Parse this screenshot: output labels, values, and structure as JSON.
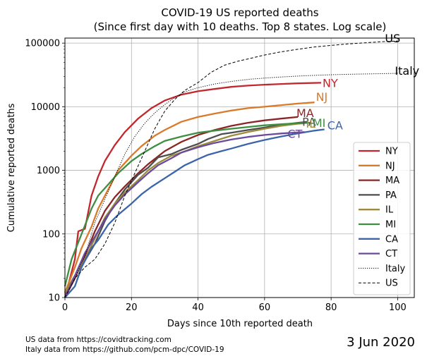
{
  "chart_data": {
    "type": "line",
    "title_lines": [
      "COVID-19 US reported deaths",
      "(Since first day with 10 deaths. Top 8 states. Log scale)"
    ],
    "xlabel": "Days since 10th reported death",
    "ylabel": "Cumulative reported deaths",
    "xlim": [
      0,
      105
    ],
    "ylim": [
      10,
      120000
    ],
    "yscale": "log",
    "xticks": [
      0,
      20,
      40,
      60,
      80,
      100
    ],
    "yticks": [
      10,
      100,
      1000,
      10000,
      100000
    ],
    "grid": true,
    "legend_position": "lower-right",
    "series": [
      {
        "name": "NY",
        "label": "NY",
        "color": "#c1272d",
        "style": "solid",
        "points": [
          [
            0,
            10
          ],
          [
            2,
            25
          ],
          [
            3,
            40
          ],
          [
            4,
            110
          ],
          [
            6,
            120
          ],
          [
            8,
            400
          ],
          [
            10,
            800
          ],
          [
            12,
            1400
          ],
          [
            15,
            2500
          ],
          [
            18,
            4000
          ],
          [
            22,
            6500
          ],
          [
            26,
            9500
          ],
          [
            30,
            12500
          ],
          [
            35,
            15500
          ],
          [
            40,
            17500
          ],
          [
            45,
            19000
          ],
          [
            50,
            20500
          ],
          [
            55,
            21500
          ],
          [
            60,
            22200
          ],
          [
            65,
            22800
          ],
          [
            70,
            23300
          ],
          [
            77,
            23800
          ]
        ]
      },
      {
        "name": "NJ",
        "label": "NJ",
        "color": "#d97a2b",
        "style": "solid",
        "points": [
          [
            0,
            12
          ],
          [
            3,
            30
          ],
          [
            5,
            60
          ],
          [
            8,
            130
          ],
          [
            10,
            250
          ],
          [
            13,
            500
          ],
          [
            16,
            1000
          ],
          [
            20,
            1700
          ],
          [
            23,
            2400
          ],
          [
            27,
            3500
          ],
          [
            30,
            4300
          ],
          [
            35,
            5800
          ],
          [
            40,
            6900
          ],
          [
            45,
            7800
          ],
          [
            50,
            8700
          ],
          [
            55,
            9500
          ],
          [
            60,
            10000
          ],
          [
            65,
            10600
          ],
          [
            70,
            11200
          ],
          [
            75,
            11700
          ]
        ]
      },
      {
        "name": "MA",
        "label": "MA",
        "color": "#8b2525",
        "style": "solid",
        "points": [
          [
            0,
            10
          ],
          [
            3,
            20
          ],
          [
            6,
            45
          ],
          [
            9,
            110
          ],
          [
            12,
            230
          ],
          [
            15,
            380
          ],
          [
            18,
            560
          ],
          [
            22,
            900
          ],
          [
            25,
            1250
          ],
          [
            30,
            2000
          ],
          [
            35,
            2800
          ],
          [
            40,
            3600
          ],
          [
            45,
            4300
          ],
          [
            50,
            5000
          ],
          [
            55,
            5600
          ],
          [
            60,
            6100
          ],
          [
            65,
            6500
          ],
          [
            70,
            6900
          ]
        ]
      },
      {
        "name": "PA",
        "label": "PA",
        "color": "#4d4d4d",
        "style": "solid",
        "points": [
          [
            0,
            12
          ],
          [
            3,
            22
          ],
          [
            6,
            38
          ],
          [
            9,
            70
          ],
          [
            12,
            160
          ],
          [
            15,
            300
          ],
          [
            18,
            500
          ],
          [
            22,
            850
          ],
          [
            25,
            1100
          ],
          [
            28,
            1600
          ],
          [
            32,
            1800
          ],
          [
            35,
            2100
          ],
          [
            40,
            2600
          ],
          [
            43,
            3100
          ],
          [
            47,
            3700
          ],
          [
            50,
            3900
          ],
          [
            55,
            4300
          ],
          [
            60,
            4700
          ],
          [
            65,
            5200
          ],
          [
            70,
            5600
          ],
          [
            73,
            5800
          ]
        ]
      },
      {
        "name": "IL",
        "label": "IL",
        "color": "#9d8a3c",
        "style": "solid",
        "points": [
          [
            0,
            12
          ],
          [
            3,
            22
          ],
          [
            6,
            40
          ],
          [
            9,
            85
          ],
          [
            12,
            180
          ],
          [
            15,
            300
          ],
          [
            18,
            450
          ],
          [
            22,
            700
          ],
          [
            25,
            1000
          ],
          [
            28,
            1300
          ],
          [
            32,
            1700
          ],
          [
            35,
            1900
          ],
          [
            40,
            2400
          ],
          [
            45,
            2900
          ],
          [
            50,
            3500
          ],
          [
            55,
            4000
          ],
          [
            60,
            4500
          ],
          [
            65,
            5000
          ],
          [
            70,
            5400
          ],
          [
            72,
            5500
          ]
        ]
      },
      {
        "name": "MI",
        "label": "MI",
        "color": "#3e8e41",
        "style": "solid",
        "points": [
          [
            0,
            15
          ],
          [
            2,
            40
          ],
          [
            5,
            100
          ],
          [
            8,
            250
          ],
          [
            10,
            400
          ],
          [
            13,
            600
          ],
          [
            16,
            900
          ],
          [
            20,
            1400
          ],
          [
            23,
            1800
          ],
          [
            27,
            2400
          ],
          [
            30,
            2900
          ],
          [
            35,
            3400
          ],
          [
            40,
            3900
          ],
          [
            45,
            4200
          ],
          [
            50,
            4500
          ],
          [
            55,
            4800
          ],
          [
            60,
            5100
          ],
          [
            65,
            5300
          ],
          [
            70,
            5500
          ],
          [
            74,
            5600
          ]
        ]
      },
      {
        "name": "CA",
        "label": "CA",
        "color": "#3b65a8",
        "style": "solid",
        "points": [
          [
            0,
            10
          ],
          [
            3,
            15
          ],
          [
            5,
            30
          ],
          [
            8,
            60
          ],
          [
            10,
            80
          ],
          [
            13,
            140
          ],
          [
            16,
            200
          ],
          [
            20,
            300
          ],
          [
            23,
            420
          ],
          [
            26,
            550
          ],
          [
            30,
            750
          ],
          [
            33,
            950
          ],
          [
            36,
            1200
          ],
          [
            40,
            1500
          ],
          [
            43,
            1750
          ],
          [
            47,
            2000
          ],
          [
            50,
            2200
          ],
          [
            55,
            2600
          ],
          [
            60,
            3000
          ],
          [
            65,
            3400
          ],
          [
            70,
            3800
          ],
          [
            75,
            4200
          ],
          [
            78,
            4400
          ]
        ]
      },
      {
        "name": "CT",
        "label": "CT",
        "color": "#6a4a9c",
        "style": "solid",
        "points": [
          [
            0,
            10
          ],
          [
            3,
            22
          ],
          [
            6,
            50
          ],
          [
            9,
            90
          ],
          [
            12,
            170
          ],
          [
            15,
            280
          ],
          [
            18,
            420
          ],
          [
            22,
            650
          ],
          [
            25,
            900
          ],
          [
            28,
            1200
          ],
          [
            32,
            1550
          ],
          [
            35,
            1900
          ],
          [
            40,
            2300
          ],
          [
            45,
            2700
          ],
          [
            50,
            3050
          ],
          [
            55,
            3350
          ],
          [
            60,
            3600
          ],
          [
            65,
            3800
          ],
          [
            70,
            3950
          ],
          [
            72,
            4000
          ]
        ]
      },
      {
        "name": "Italy",
        "label": "Italy",
        "color": "#000000",
        "style": "dotted",
        "points": [
          [
            0,
            10
          ],
          [
            3,
            20
          ],
          [
            6,
            45
          ],
          [
            9,
            150
          ],
          [
            12,
            350
          ],
          [
            15,
            800
          ],
          [
            18,
            1800
          ],
          [
            21,
            3400
          ],
          [
            24,
            5500
          ],
          [
            27,
            8000
          ],
          [
            30,
            10800
          ],
          [
            33,
            13900
          ],
          [
            36,
            17100
          ],
          [
            40,
            19900
          ],
          [
            45,
            22800
          ],
          [
            50,
            25000
          ],
          [
            55,
            26900
          ],
          [
            60,
            28200
          ],
          [
            65,
            29300
          ],
          [
            70,
            30300
          ],
          [
            75,
            31100
          ],
          [
            80,
            31800
          ],
          [
            85,
            32300
          ],
          [
            90,
            32700
          ],
          [
            95,
            33100
          ],
          [
            100,
            33500
          ]
        ]
      },
      {
        "name": "US",
        "label": "US",
        "color": "#000000",
        "style": "dashed",
        "points": [
          [
            0,
            10
          ],
          [
            3,
            20
          ],
          [
            6,
            30
          ],
          [
            9,
            40
          ],
          [
            12,
            70
          ],
          [
            15,
            150
          ],
          [
            18,
            400
          ],
          [
            21,
            900
          ],
          [
            24,
            2000
          ],
          [
            27,
            4500
          ],
          [
            30,
            8500
          ],
          [
            33,
            13000
          ],
          [
            36,
            18000
          ],
          [
            40,
            24000
          ],
          [
            44,
            35000
          ],
          [
            48,
            45000
          ],
          [
            52,
            52000
          ],
          [
            56,
            58000
          ],
          [
            60,
            65000
          ],
          [
            65,
            73000
          ],
          [
            70,
            80000
          ],
          [
            75,
            87000
          ],
          [
            80,
            92000
          ],
          [
            85,
            97000
          ],
          [
            90,
            101000
          ],
          [
            95,
            105000
          ],
          [
            100,
            108000
          ]
        ]
      }
    ],
    "sources": [
      "US data from https://covidtracking.com",
      "Italy data from https://github.com/pcm-dpc/COVID-19"
    ],
    "date": "3 Jun 2020"
  }
}
